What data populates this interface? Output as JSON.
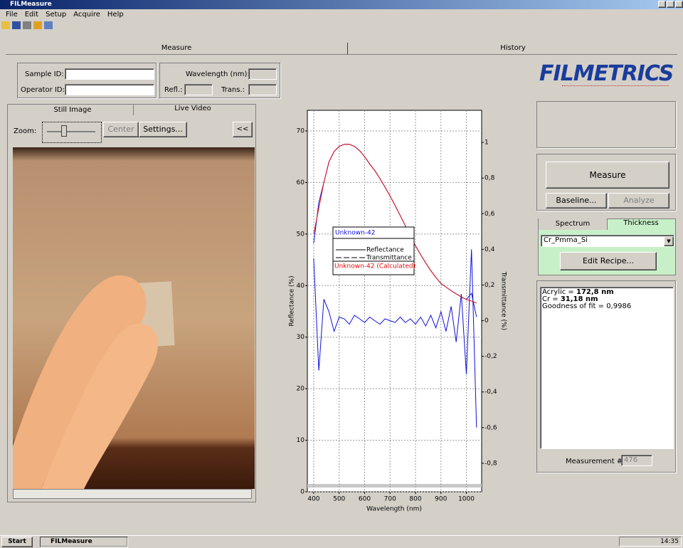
{
  "window": {
    "title": "FILMeasure"
  },
  "menu": [
    "File",
    "Edit",
    "Setup",
    "Acquire",
    "Help"
  ],
  "main_tabs": [
    "Measure",
    "History"
  ],
  "sample_form": {
    "sample_id": "Sample ID:",
    "operator_id": "Operator ID:",
    "wavelength": "Wavelength (nm):",
    "refl": "Refl.:",
    "trans": "Trans.:"
  },
  "video_panel": {
    "tabs": [
      "Still Image",
      "Live Video"
    ],
    "zoom": "Zoom:",
    "center": "Center",
    "settings": "Settings...",
    "collapse": "<<"
  },
  "chart_data": {
    "type": "line",
    "x_label": "Wavelength (nm)",
    "y_label": "Reflectance (%)",
    "y2_label": "Transmittance (%)",
    "legend_title": "Unknown-42",
    "grid": true,
    "xlim": [
      375,
      1060
    ],
    "ylim": [
      0,
      74
    ],
    "y2lim": [
      -0.96,
      1.18
    ],
    "xticks": [
      400,
      500,
      600,
      700,
      800,
      900,
      1000
    ],
    "yticks": [
      0,
      10,
      20,
      30,
      40,
      50,
      60,
      70
    ],
    "y2ticks": [
      {
        "value": -0.8,
        "label": "-0,8"
      },
      {
        "value": -0.6,
        "label": "-0,6"
      },
      {
        "value": -0.4,
        "label": "-0,4"
      },
      {
        "value": -0.2,
        "label": "-0,2"
      },
      0,
      {
        "value": 0.2,
        "label": "0,2"
      },
      {
        "value": 0.4,
        "label": "0,4"
      },
      {
        "value": 0.6,
        "label": "0,6"
      },
      {
        "value": 0.8,
        "label": "0,8"
      },
      1
    ],
    "x": [
      400,
      420,
      440,
      460,
      480,
      500,
      520,
      540,
      560,
      580,
      600,
      620,
      640,
      660,
      680,
      700,
      720,
      740,
      760,
      780,
      800,
      820,
      840,
      860,
      880,
      900,
      920,
      940,
      960,
      980,
      1000,
      1020,
      1040
    ],
    "series": [
      {
        "name": "Reflectance",
        "color": "#1010e0",
        "dashed": false,
        "values": [
          48.2,
          56.1,
          60,
          64,
          66,
          67,
          67.4,
          67.4,
          67,
          66.2,
          65,
          63.6,
          62.3,
          60.8,
          59.1,
          57.4,
          55.5,
          53.6,
          51.6,
          49.6,
          47.7,
          46,
          44.4,
          42.9,
          41.6,
          40.4,
          39.7,
          39,
          38.4,
          37.8,
          37.3,
          38.5,
          33.9
        ]
      },
      {
        "name": "Transmittance",
        "color": "#1010e0",
        "dashed": true,
        "axis": "y2",
        "values": [
          0.35,
          -0.28,
          0.12,
          0.05,
          -0.06,
          0.02,
          0.01,
          -0.02,
          0.03,
          0.01,
          -0.01,
          0.02,
          0,
          -0.02,
          0.01,
          0,
          -0.01,
          0.02,
          -0.01,
          0.01,
          -0.02,
          0.02,
          -0.03,
          0.03,
          -0.04,
          0.05,
          -0.06,
          0.08,
          -0.12,
          0.15,
          -0.3,
          0.4,
          -0.6
        ]
      },
      {
        "name": "Unknown-42 (Calculated)",
        "color": "#e01010",
        "dashed": false,
        "values": [
          50,
          55,
          60,
          64,
          66,
          67,
          67.4,
          67.4,
          67,
          66.2,
          65,
          63.6,
          62.3,
          60.8,
          59.1,
          57.4,
          55.5,
          53.6,
          51.6,
          49.6,
          47.7,
          46,
          44.4,
          42.9,
          41.6,
          40.4,
          39.7,
          39,
          38.4,
          37.8,
          37.3,
          37,
          36.6
        ]
      }
    ]
  },
  "right_panel": {
    "logo": "FILMETRICS",
    "measure": "Measure",
    "baseline": "Baseline...",
    "analyze": "Analyze",
    "tabs": [
      "Spectrum",
      "Thickness"
    ],
    "recipe": "Cr_Pmma_Si",
    "edit_recipe": "Edit Recipe...",
    "results": [
      [
        "Acrylic = ",
        "172,8 nm"
      ],
      [
        "Cr = ",
        "31,18 nm"
      ],
      [
        "Goodness of fit = 0,9986"
      ]
    ],
    "measurement_label": "Measurement #",
    "measurement_number": "476"
  },
  "taskbar": {
    "start": "Start",
    "task": "FILMeasure",
    "clock": "14:35"
  }
}
